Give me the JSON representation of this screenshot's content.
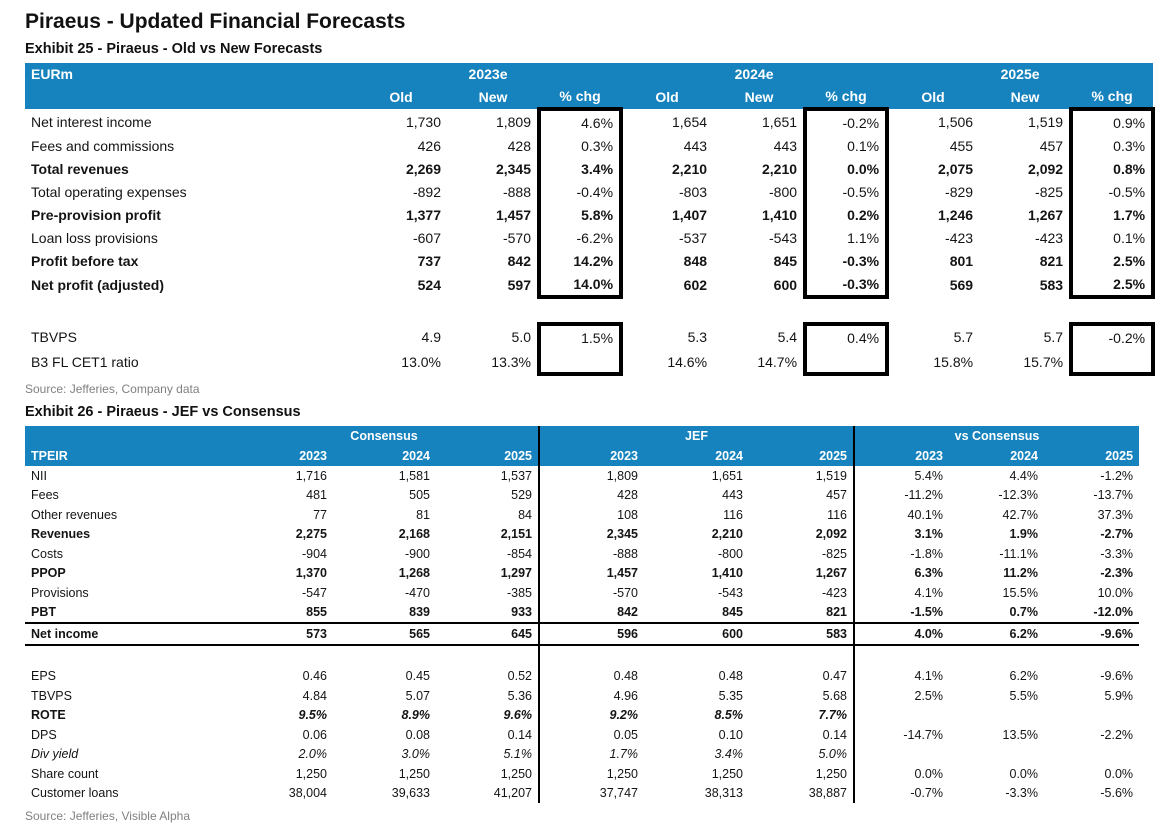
{
  "page_title": "Piraeus - Updated Financial Forecasts",
  "colors": {
    "header_blue": "#1683BE",
    "box_border": "#000000",
    "source_gray": "#808080"
  },
  "exhibit25": {
    "caption": "Exhibit 25 - Piraeus - Old vs New Forecasts",
    "unit_label": "EURm",
    "year_groups": [
      "2023e",
      "2024e",
      "2025e"
    ],
    "sub_headers": [
      "Old",
      "New",
      "% chg"
    ],
    "rows": [
      {
        "label": "Net interest income",
        "bold": false,
        "box": "top",
        "cells": [
          "1,730",
          "1,809",
          "4.6%",
          "1,654",
          "1,651",
          "-0.2%",
          "1,506",
          "1,519",
          "0.9%"
        ]
      },
      {
        "label": "Fees and commissions",
        "bold": false,
        "box": "mid",
        "cells": [
          "426",
          "428",
          "0.3%",
          "443",
          "443",
          "0.1%",
          "455",
          "457",
          "0.3%"
        ]
      },
      {
        "label": "Total revenues",
        "bold": true,
        "box": "mid",
        "cells": [
          "2,269",
          "2,345",
          "3.4%",
          "2,210",
          "2,210",
          "0.0%",
          "2,075",
          "2,092",
          "0.8%"
        ]
      },
      {
        "label": "Total operating expenses",
        "bold": false,
        "box": "mid",
        "cells": [
          "-892",
          "-888",
          "-0.4%",
          "-803",
          "-800",
          "-0.5%",
          "-829",
          "-825",
          "-0.5%"
        ]
      },
      {
        "label": "Pre-provision profit",
        "bold": true,
        "box": "mid",
        "cells": [
          "1,377",
          "1,457",
          "5.8%",
          "1,407",
          "1,410",
          "0.2%",
          "1,246",
          "1,267",
          "1.7%"
        ]
      },
      {
        "label": "Loan loss provisions",
        "bold": false,
        "box": "mid",
        "cells": [
          "-607",
          "-570",
          "-6.2%",
          "-537",
          "-543",
          "1.1%",
          "-423",
          "-423",
          "0.1%"
        ]
      },
      {
        "label": "Profit before tax",
        "bold": true,
        "box": "mid",
        "cells": [
          "737",
          "842",
          "14.2%",
          "848",
          "845",
          "-0.3%",
          "801",
          "821",
          "2.5%"
        ]
      },
      {
        "label": "Net profit (adjusted)",
        "bold": true,
        "box": "bottom",
        "cells": [
          "524",
          "597",
          "14.0%",
          "602",
          "600",
          "-0.3%",
          "569",
          "583",
          "2.5%"
        ]
      },
      {
        "spacer": true
      },
      {
        "label": "TBVPS",
        "bold": false,
        "box": "top",
        "cells": [
          "4.9",
          "5.0",
          "1.5%",
          "5.3",
          "5.4",
          "0.4%",
          "5.7",
          "5.7",
          "-0.2%"
        ]
      },
      {
        "label": "B3 FL CET1 ratio",
        "bold": false,
        "box": "bottom",
        "cells": [
          "13.0%",
          "13.3%",
          "",
          "14.6%",
          "14.7%",
          "",
          "15.8%",
          "15.7%",
          ""
        ]
      }
    ],
    "source": "Source: Jefferies, Company data"
  },
  "exhibit26": {
    "caption": "Exhibit 26 - Piraeus - JEF vs Consensus",
    "ticker": "TPEIR",
    "groups": [
      "Consensus",
      "JEF",
      "vs Consensus"
    ],
    "years": [
      "2023",
      "2024",
      "2025"
    ],
    "rows": [
      {
        "label": "NII",
        "cells": [
          "1,716",
          "1,581",
          "1,537",
          "1,809",
          "1,651",
          "1,519",
          "5.4%",
          "4.4%",
          "-1.2%"
        ]
      },
      {
        "label": "Fees",
        "cells": [
          "481",
          "505",
          "529",
          "428",
          "443",
          "457",
          "-11.2%",
          "-12.3%",
          "-13.7%"
        ]
      },
      {
        "label": "Other revenues",
        "cells": [
          "77",
          "81",
          "84",
          "108",
          "116",
          "116",
          "40.1%",
          "42.7%",
          "37.3%"
        ]
      },
      {
        "label": "Revenues",
        "bold": true,
        "cells": [
          "2,275",
          "2,168",
          "2,151",
          "2,345",
          "2,210",
          "2,092",
          "3.1%",
          "1.9%",
          "-2.7%"
        ]
      },
      {
        "label": "Costs",
        "cells": [
          "-904",
          "-900",
          "-854",
          "-888",
          "-800",
          "-825",
          "-1.8%",
          "-11.1%",
          "-3.3%"
        ]
      },
      {
        "label": "PPOP",
        "bold": true,
        "cells": [
          "1,370",
          "1,268",
          "1,297",
          "1,457",
          "1,410",
          "1,267",
          "6.3%",
          "11.2%",
          "-2.3%"
        ]
      },
      {
        "label": "Provisions",
        "cells": [
          "-547",
          "-470",
          "-385",
          "-570",
          "-543",
          "-423",
          "4.1%",
          "15.5%",
          "10.0%"
        ]
      },
      {
        "label": "PBT",
        "bold": true,
        "cells": [
          "855",
          "839",
          "933",
          "842",
          "845",
          "821",
          "-1.5%",
          "0.7%",
          "-12.0%"
        ]
      },
      {
        "label": "Net income",
        "bold": true,
        "rule": true,
        "cells": [
          "573",
          "565",
          "645",
          "596",
          "600",
          "583",
          "4.0%",
          "6.2%",
          "-9.6%"
        ]
      },
      {
        "spacer": true
      },
      {
        "label": "EPS",
        "cells": [
          "0.46",
          "0.45",
          "0.52",
          "0.48",
          "0.48",
          "0.47",
          "4.1%",
          "6.2%",
          "-9.6%"
        ]
      },
      {
        "label": "TBVPS",
        "cells": [
          "4.84",
          "5.07",
          "5.36",
          "4.96",
          "5.35",
          "5.68",
          "2.5%",
          "5.5%",
          "5.9%"
        ]
      },
      {
        "label": "ROTE",
        "bold": true,
        "num_italic": true,
        "cells": [
          "9.5%",
          "8.9%",
          "9.6%",
          "9.2%",
          "8.5%",
          "7.7%",
          "",
          "",
          ""
        ]
      },
      {
        "label": "DPS",
        "cells": [
          "0.06",
          "0.08",
          "0.14",
          "0.05",
          "0.10",
          "0.14",
          "-14.7%",
          "13.5%",
          "-2.2%"
        ]
      },
      {
        "label": "Div yield",
        "label_italic": true,
        "num_italic": true,
        "cells": [
          "2.0%",
          "3.0%",
          "5.1%",
          "1.7%",
          "3.4%",
          "5.0%",
          "",
          "",
          ""
        ]
      },
      {
        "label": "Share count",
        "cells": [
          "1,250",
          "1,250",
          "1,250",
          "1,250",
          "1,250",
          "1,250",
          "0.0%",
          "0.0%",
          "0.0%"
        ]
      },
      {
        "label": "Customer loans",
        "cells": [
          "38,004",
          "39,633",
          "41,207",
          "37,747",
          "38,313",
          "38,887",
          "-0.7%",
          "-3.3%",
          "-5.6%"
        ]
      }
    ],
    "source": "Source: Jefferies, Visible Alpha"
  }
}
